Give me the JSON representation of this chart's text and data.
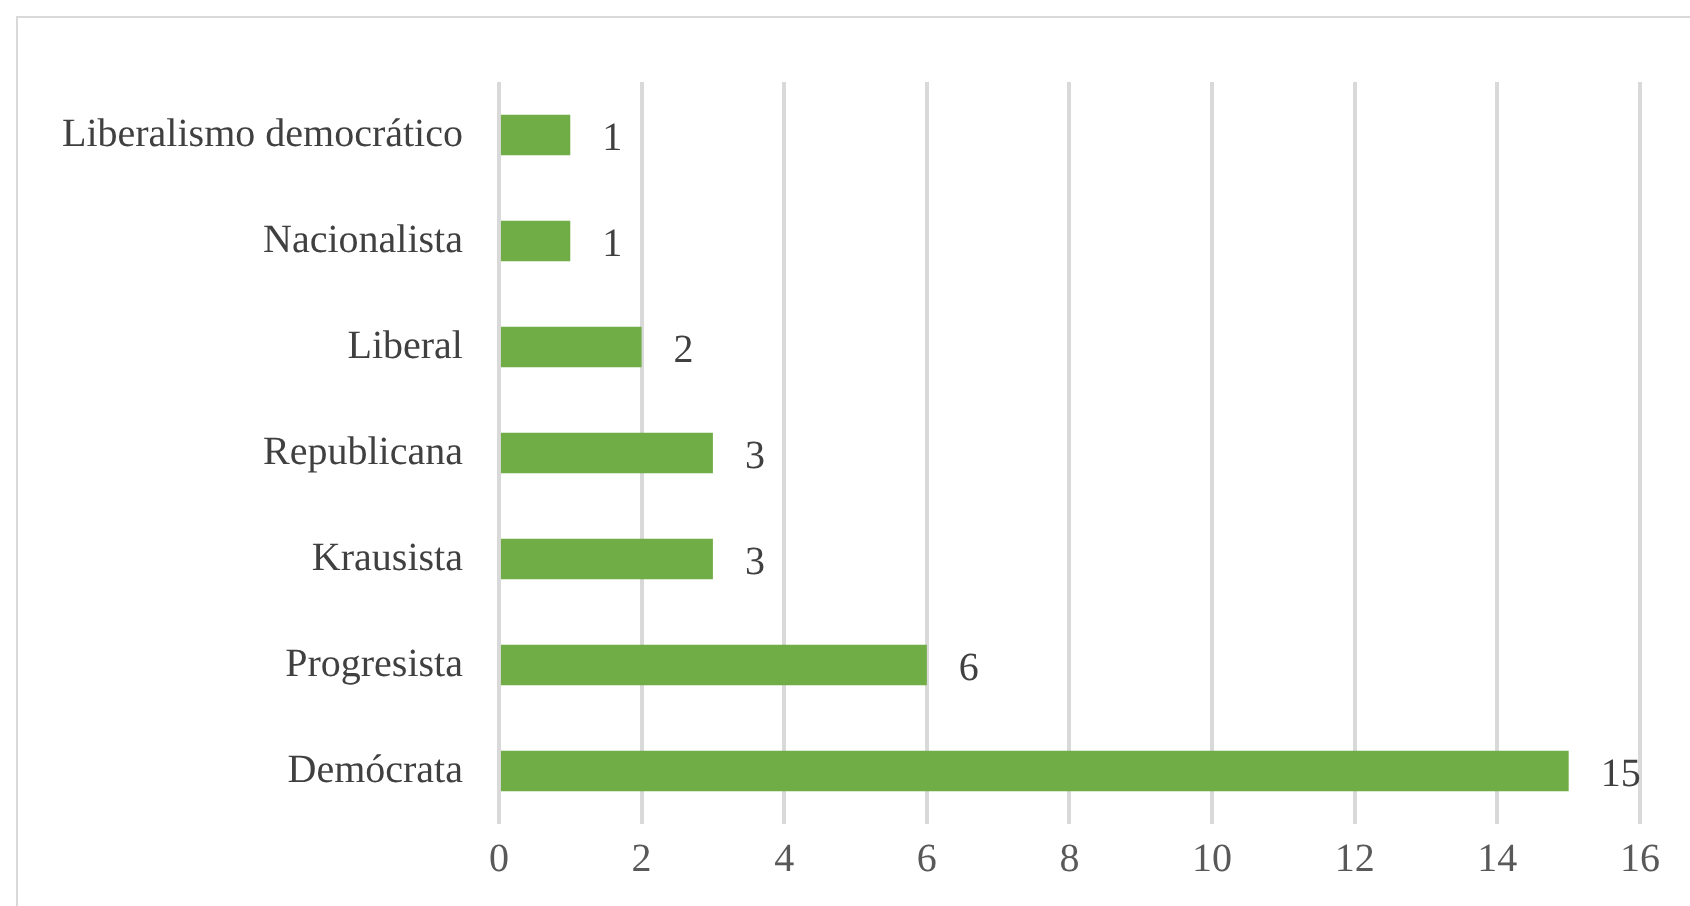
{
  "chart_data": {
    "type": "bar",
    "orientation": "horizontal",
    "categories": [
      "Liberalismo democrático",
      "Nacionalista",
      "Liberal",
      "Republicana",
      "Krausista",
      "Progresista",
      "Demócrata"
    ],
    "values": [
      1,
      1,
      2,
      3,
      3,
      6,
      15
    ],
    "color": "#70ad47",
    "xlim": [
      0,
      16
    ],
    "xticks": [
      0,
      2,
      4,
      6,
      8,
      10,
      12,
      14,
      16
    ],
    "grid": "x",
    "data_labels": true
  }
}
